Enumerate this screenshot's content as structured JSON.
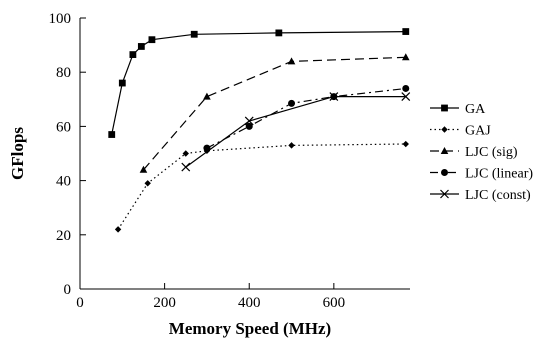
{
  "chart_data": {
    "type": "line",
    "title": "",
    "xlabel": "Memory Speed (MHz)",
    "ylabel": "GFlops",
    "xlim": [
      0,
      780
    ],
    "ylim": [
      0,
      100
    ],
    "xticks": [
      0,
      200,
      400,
      600
    ],
    "yticks": [
      0,
      20,
      40,
      60,
      80,
      100
    ],
    "grid": false,
    "legend_position": "right",
    "series": [
      {
        "name": "GA",
        "marker": "square",
        "dash": "solid",
        "x": [
          75,
          100,
          125,
          145,
          170,
          270,
          470,
          770
        ],
        "y": [
          57,
          76,
          86.5,
          89.5,
          92,
          94,
          94.5,
          95
        ]
      },
      {
        "name": "GAJ",
        "marker": "diamond",
        "dash": "dotted",
        "x": [
          90,
          160,
          250,
          300,
          500,
          770
        ],
        "y": [
          22,
          39,
          50,
          51,
          53,
          53.5
        ]
      },
      {
        "name": "LJC (sig)",
        "marker": "triangle",
        "dash": "dashed",
        "x": [
          150,
          300,
          500,
          770
        ],
        "y": [
          44,
          71,
          84,
          85.5
        ]
      },
      {
        "name": "LJC (linear)",
        "marker": "circle",
        "dash": "dashdot",
        "x": [
          300,
          400,
          500,
          600,
          770
        ],
        "y": [
          52,
          60,
          68.5,
          71,
          74
        ]
      },
      {
        "name": "LJC (const)",
        "marker": "cross",
        "dash": "solid",
        "x": [
          250,
          400,
          600,
          770
        ],
        "y": [
          45,
          62,
          71,
          71
        ]
      }
    ]
  }
}
